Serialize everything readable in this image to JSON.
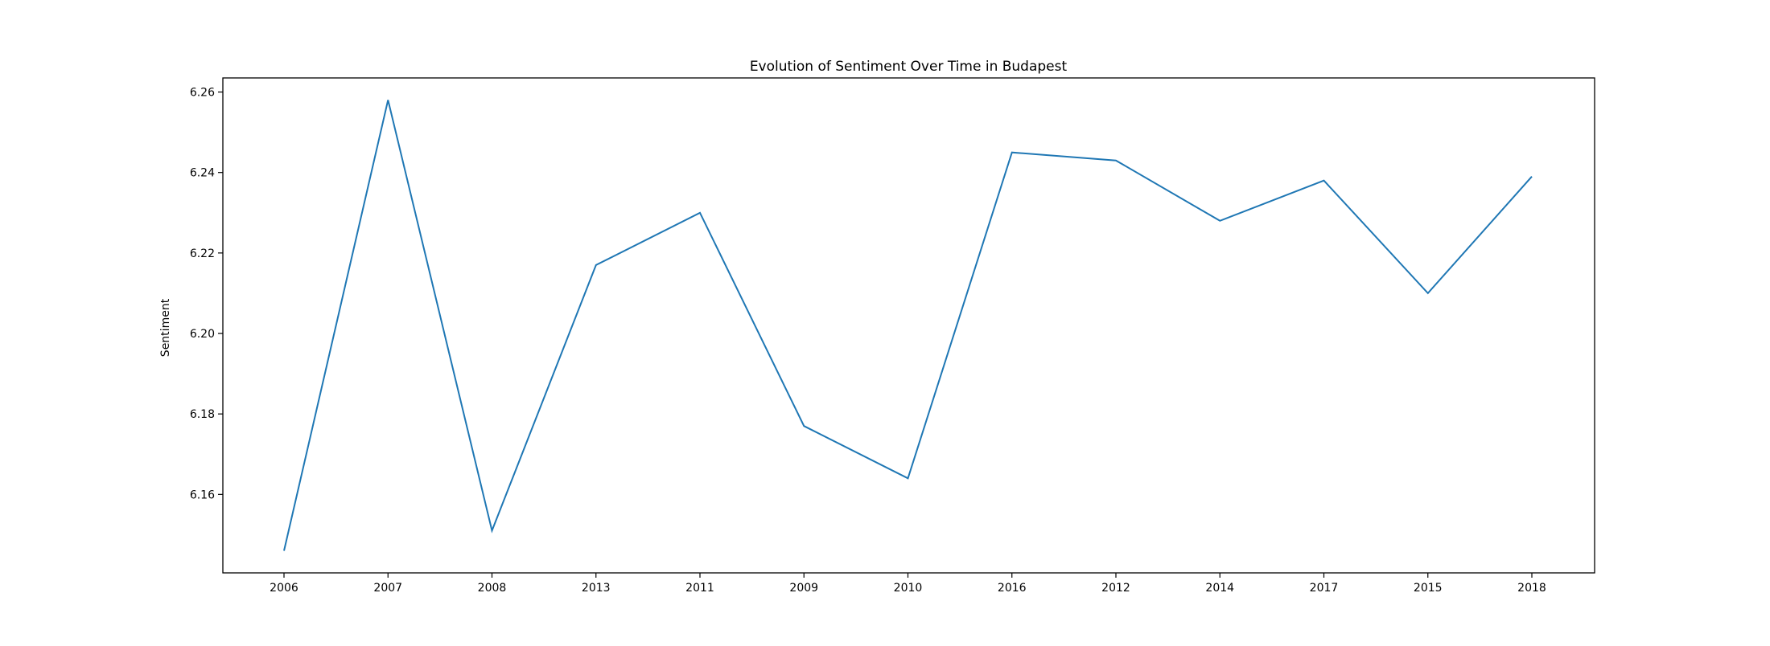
{
  "chart_data": {
    "type": "line",
    "title": "Evolution of Sentiment Over Time in Budapest",
    "xlabel": "",
    "ylabel": "Sentiment",
    "categories": [
      "2006",
      "2007",
      "2008",
      "2013",
      "2011",
      "2009",
      "2010",
      "2016",
      "2012",
      "2014",
      "2017",
      "2015",
      "2018"
    ],
    "series": [
      {
        "values": [
          6.146,
          6.258,
          6.151,
          6.217,
          6.23,
          6.177,
          6.164,
          6.245,
          6.243,
          6.228,
          6.238,
          6.21,
          6.239
        ]
      }
    ],
    "yticks": [
      "6.16",
      "6.18",
      "6.20",
      "6.22",
      "6.24",
      "6.26"
    ],
    "ylim": [
      6.1405,
      6.2635
    ],
    "grid": false,
    "legend": "none",
    "line_color": "#1f77b4"
  }
}
